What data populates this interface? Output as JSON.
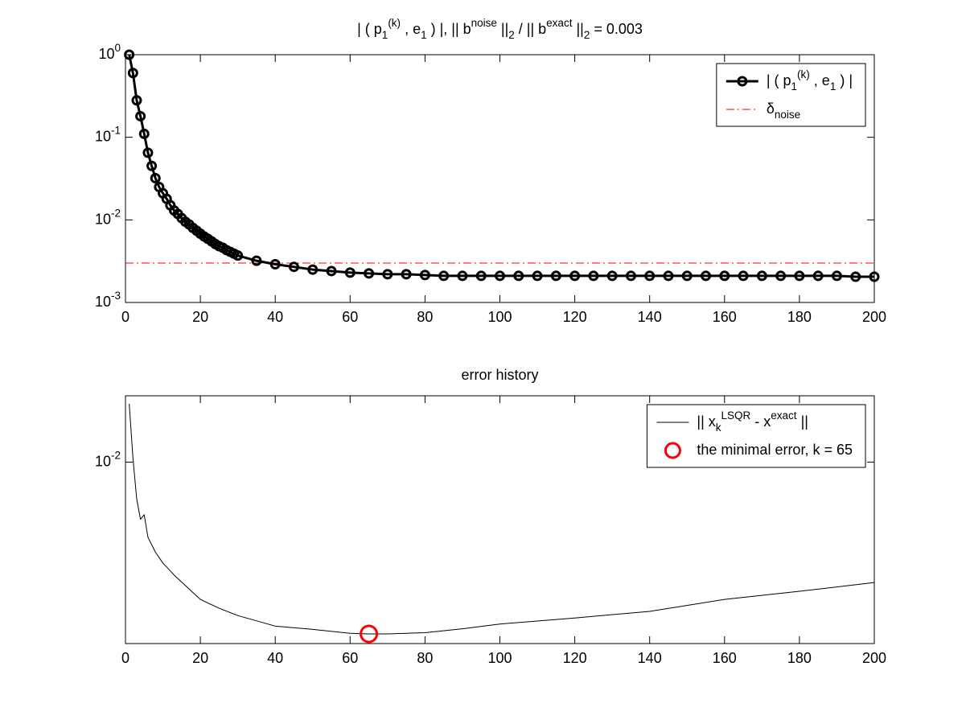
{
  "chart_data": [
    {
      "type": "line",
      "title": "| ( p_1^{(k)} , e_1 ) |,   || b^{noise} ||_2 / || b^{exact} ||_2 = 0.003",
      "xlim": [
        0,
        200
      ],
      "xticks": [
        0,
        20,
        40,
        60,
        80,
        100,
        120,
        140,
        160,
        180,
        200
      ],
      "ylim": [
        0.001,
        1
      ],
      "log_y": true,
      "yticks": [
        {
          "value": 0.001,
          "label": "10^{-3}"
        },
        {
          "value": 0.01,
          "label": "10^{-2}"
        },
        {
          "value": 0.1,
          "label": "10^{-1}"
        },
        {
          "value": 1,
          "label": "10^{0}"
        }
      ],
      "legend": "northeast",
      "series": [
        {
          "name": "| ( p_1^{(k)} , e_1 ) |",
          "color": "#000000",
          "line_style": "-",
          "line_width": 3,
          "marker": "o",
          "x": [
            1,
            2,
            3,
            4,
            5,
            6,
            7,
            8,
            9,
            10,
            11,
            12,
            13,
            14,
            15,
            16,
            17,
            18,
            19,
            20,
            21,
            22,
            23,
            24,
            25,
            26,
            27,
            28,
            29,
            30,
            35,
            40,
            45,
            50,
            55,
            60,
            65,
            70,
            75,
            80,
            85,
            90,
            95,
            100,
            105,
            110,
            115,
            120,
            125,
            130,
            135,
            140,
            145,
            150,
            155,
            160,
            165,
            170,
            175,
            180,
            185,
            190,
            195,
            200
          ],
          "values": [
            1.0,
            0.6,
            0.28,
            0.18,
            0.11,
            0.065,
            0.045,
            0.032,
            0.025,
            0.021,
            0.018,
            0.015,
            0.013,
            0.0118,
            0.0105,
            0.0095,
            0.0088,
            0.008,
            0.0074,
            0.0068,
            0.0063,
            0.0059,
            0.0055,
            0.0051,
            0.0048,
            0.0046,
            0.0043,
            0.0041,
            0.0039,
            0.0037,
            0.0032,
            0.0029,
            0.0027,
            0.0025,
            0.0024,
            0.0023,
            0.00225,
            0.0022,
            0.0022,
            0.00215,
            0.0021,
            0.0021,
            0.0021,
            0.0021,
            0.0021,
            0.0021,
            0.0021,
            0.0021,
            0.0021,
            0.0021,
            0.0021,
            0.0021,
            0.0021,
            0.0021,
            0.0021,
            0.0021,
            0.0021,
            0.0021,
            0.0021,
            0.0021,
            0.0021,
            0.0021,
            0.00205,
            0.00205
          ]
        }
      ],
      "hlines": [
        {
          "name": "\\delta_{noise}",
          "value": 0.003,
          "color": "#ff0000",
          "line_style": "-."
        }
      ]
    },
    {
      "type": "line",
      "title": "error history",
      "xlim": [
        0,
        200
      ],
      "xticks": [
        0,
        20,
        40,
        60,
        80,
        100,
        120,
        140,
        160,
        180,
        200
      ],
      "ylim": [
        0.0015,
        0.02
      ],
      "log_y": true,
      "yticks": [
        {
          "value": 0.01,
          "label": "10^{-2}"
        }
      ],
      "legend": "northeast",
      "series": [
        {
          "name": "|| x_k^{LSQR} - x^{exact} ||",
          "color": "#000000",
          "line_style": "-",
          "line_width": 1,
          "marker": null,
          "x": [
            1,
            2,
            3,
            4,
            5,
            6,
            8,
            10,
            13,
            16,
            20,
            25,
            30,
            40,
            50,
            60,
            65,
            70,
            80,
            90,
            100,
            120,
            140,
            160,
            180,
            200
          ],
          "values": [
            0.0184,
            0.0104,
            0.0068,
            0.0055,
            0.00577,
            0.00456,
            0.0039,
            0.00348,
            0.00307,
            0.00275,
            0.00238,
            0.00217,
            0.00201,
            0.0018,
            0.00174,
            0.00167,
            0.00166,
            0.00166,
            0.00168,
            0.00175,
            0.00184,
            0.00196,
            0.0021,
            0.00238,
            0.00259,
            0.00284
          ]
        },
        {
          "name": "the minimal error, k = 65",
          "color": "#ff0000",
          "line_style": "none",
          "line_width": 3,
          "marker": "o",
          "x": [
            65
          ],
          "values": [
            0.00166
          ]
        }
      ]
    }
  ]
}
